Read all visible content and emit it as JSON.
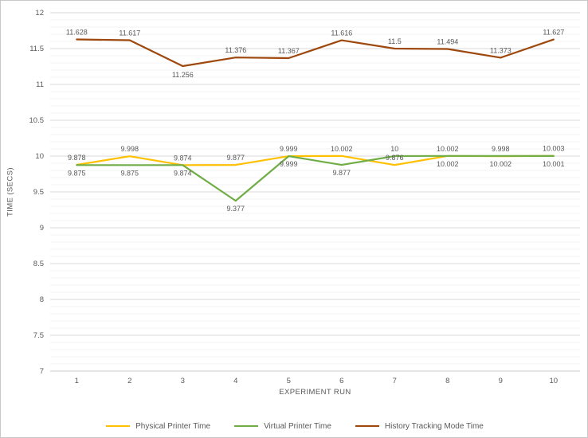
{
  "chart_data": {
    "type": "line",
    "title": "",
    "xlabel": "EXPERIMENT RUN",
    "ylabel": "TIME (SECS)",
    "ylim": [
      7,
      12
    ],
    "grid": true,
    "legend_position": "bottom",
    "yticks": [
      "7",
      "7.5",
      "8",
      "8.5",
      "9",
      "9.5",
      "10",
      "10.5",
      "11",
      "11.5",
      "12"
    ],
    "categories": [
      "1",
      "2",
      "3",
      "4",
      "5",
      "6",
      "7",
      "8",
      "9",
      "10"
    ],
    "series": [
      {
        "name": "Physical Printer Time",
        "color": "#FFC000",
        "values": [
          9.878,
          9.998,
          9.874,
          9.877,
          9.999,
          10.002,
          9.876,
          10.002,
          9.998,
          10.003
        ],
        "labels": [
          "9.878",
          "9.998",
          "9.874",
          "9.877",
          "9.999",
          "10.002",
          "9.876",
          "10.002",
          "9.998",
          "10.003"
        ]
      },
      {
        "name": "Virtual Printer Time",
        "color": "#70AD47",
        "values": [
          9.875,
          9.875,
          9.874,
          9.377,
          9.999,
          9.877,
          10,
          10.002,
          10.002,
          10.001
        ],
        "labels": [
          "9.875",
          "9.875",
          "9.874",
          "9.377",
          "9.999",
          "9.877",
          "10",
          "10.002",
          "10.002",
          "10.001"
        ]
      },
      {
        "name": "History Tracking Mode Time",
        "color": "#9E480E",
        "values": [
          11.628,
          11.617,
          11.256,
          11.376,
          11.367,
          11.616,
          11.5,
          11.494,
          11.373,
          11.627
        ],
        "labels": [
          "11.628",
          "11.617",
          "11.256",
          "11.376",
          "11.367",
          "11.616",
          "11.5",
          "11.494",
          "11.373",
          "11.627"
        ]
      }
    ]
  }
}
